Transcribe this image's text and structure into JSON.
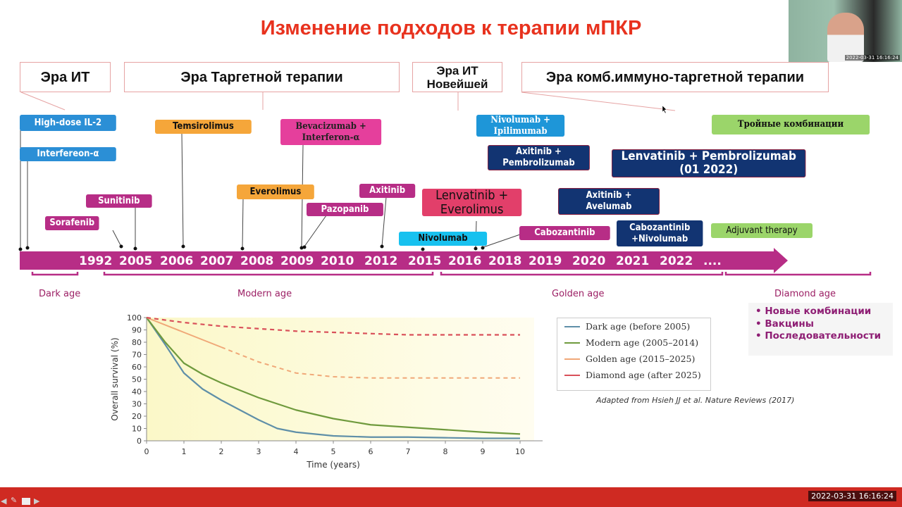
{
  "slide": {
    "title": "Изменение подходов к терапии мПКР",
    "eras": [
      "Эра ИТ",
      "Эра Таргетной терапии",
      "Эра ИТ Новейшей",
      "Эра комб.иммуно-таргетной терапии"
    ],
    "drugs": {
      "il2": "High-dose IL-2",
      "ifn": "Interfereon-α",
      "sorafenib": "Sorafenib",
      "sunitinib": "Sunitinib",
      "temsirolimus": "Temsirolimus",
      "everolimus": "Everolimus",
      "bev_line1": "Bevacizumab +",
      "bev_line2": "Interferon-α",
      "pazopanib": "Pazopanib",
      "axitinib": "Axitinib",
      "nivolumab": "Nivolumab",
      "lenev_line1": "Lenvatinib +",
      "lenev_line2": "Everolimus",
      "nivipi_line1": "Nivolumab +",
      "nivipi_line2": "Ipilimumab",
      "axipem_line1": "Axitinib +",
      "axipem_line2": "Pembrolizumab",
      "cabozantinib": "Cabozantinib",
      "axiave_line1": "Axitinib +",
      "axiave_line2": "Avelumab",
      "lenpem_line1": "Lenvatinib + Pembrolizumab",
      "lenpem_line2": "(01 2022)",
      "cabonivo_line1": "Cabozantinib",
      "cabonivo_line2": "+Nivolumab",
      "triple": "Тройные комбинации",
      "adjuvant": "Adjuvant therapy"
    },
    "years": [
      "1992",
      "2005",
      "2006",
      "2007",
      "2008",
      "2009",
      "2010",
      "2012",
      "2015",
      "2016",
      "2018",
      "2019",
      "2020",
      "2021",
      "2022",
      "...."
    ],
    "ages": [
      "Dark age",
      "Modern age",
      "Golden age",
      "Diamond age"
    ],
    "diamond_bullets": [
      "Новые комбинации",
      "Вакцины",
      "Последовательности"
    ],
    "citation": "Adapted from Hsieh JJ et al. Nature Reviews (2017)"
  },
  "player": {
    "timestamp": "2022-03-31 16:16:24",
    "webcam_timestamp": "2022-03-31 16:16:24"
  },
  "chart_data": {
    "type": "line",
    "title": "",
    "xlabel": "Time (years)",
    "ylabel": "Overall survival (%)",
    "xlim": [
      0,
      10
    ],
    "ylim": [
      0,
      100
    ],
    "xticks": [
      0,
      1,
      2,
      3,
      4,
      5,
      6,
      7,
      8,
      9,
      10
    ],
    "yticks": [
      0,
      10,
      20,
      30,
      40,
      50,
      60,
      70,
      80,
      90,
      100
    ],
    "legend_position": "right",
    "series": [
      {
        "name": "Dark age (before 2005)",
        "color": "#5f8fa8",
        "style": "solid",
        "x": [
          0,
          0.5,
          1,
          1.5,
          2,
          2.5,
          3,
          3.5,
          4,
          5,
          6,
          7,
          8,
          9,
          10
        ],
        "y": [
          100,
          78,
          55,
          42,
          33,
          25,
          17,
          10,
          7,
          4,
          3,
          3,
          2.5,
          2,
          2
        ]
      },
      {
        "name": "Modern age (2005–2014)",
        "color": "#6f9a3d",
        "style": "solid",
        "x": [
          0,
          0.5,
          1,
          1.5,
          2,
          3,
          4,
          5,
          6,
          7,
          8,
          9,
          10
        ],
        "y": [
          100,
          80,
          63,
          54,
          47,
          35,
          25,
          18,
          13,
          11,
          9,
          7,
          5.5
        ]
      },
      {
        "name": "Golden age (2015–2025)",
        "color": "#f0a878",
        "style": "solid-then-dashed",
        "x": [
          0,
          1,
          2,
          3,
          4,
          5,
          6,
          7,
          8,
          9,
          10
        ],
        "y": [
          100,
          88,
          76,
          64,
          55,
          52,
          51,
          51,
          51,
          51,
          51
        ]
      },
      {
        "name": "Diamond age (after 2025)",
        "color": "#d9505a",
        "style": "dashed",
        "x": [
          0,
          1,
          2,
          3,
          4,
          5,
          6,
          7,
          8,
          9,
          10
        ],
        "y": [
          100,
          96,
          93,
          91,
          89,
          88,
          87,
          86,
          86,
          86,
          86
        ]
      }
    ]
  }
}
